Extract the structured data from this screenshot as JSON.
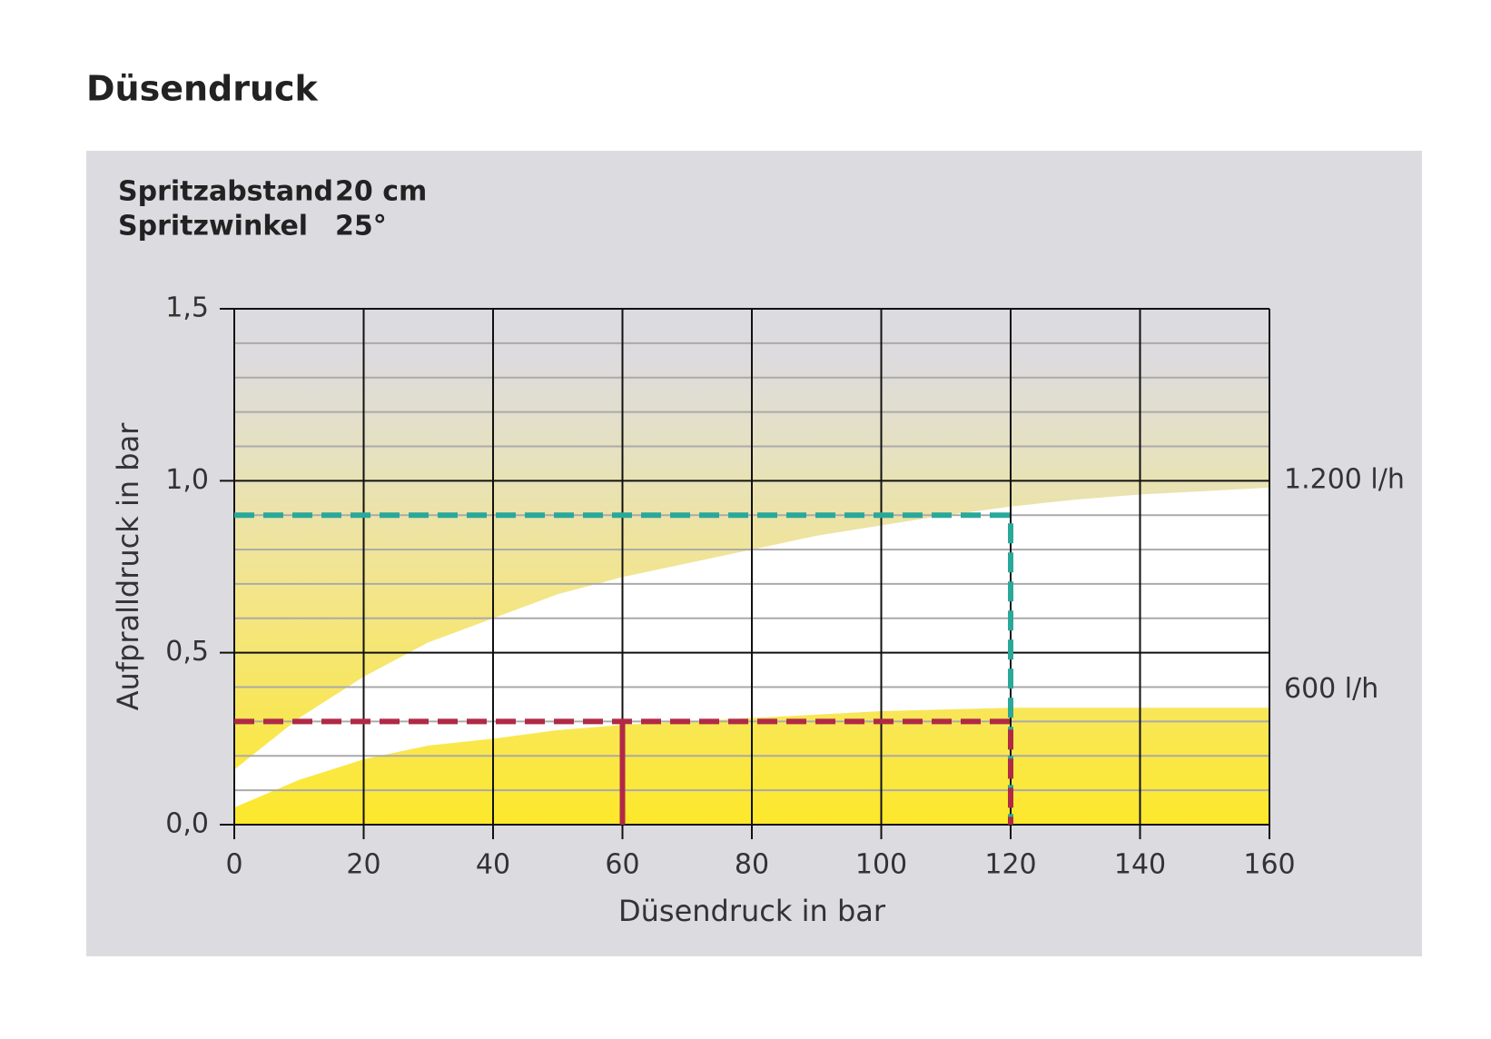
{
  "title": "Düsendruck",
  "chart_data": {
    "type": "area",
    "annotations": [
      {
        "label": "Spritzabstand",
        "value": "20 cm"
      },
      {
        "label": "Spritzwinkel",
        "value": "25°"
      }
    ],
    "x_label": "Düsendruck in bar",
    "y_label": "Aufpralldruck in bar",
    "x": [
      0,
      10,
      20,
      30,
      40,
      50,
      60,
      70,
      80,
      90,
      100,
      110,
      120,
      130,
      140,
      150,
      160
    ],
    "series": [
      {
        "name": "1.200 l/h",
        "color": "#ffffff",
        "values": [
          0.16,
          0.31,
          0.43,
          0.53,
          0.6,
          0.67,
          0.72,
          0.76,
          0.8,
          0.84,
          0.87,
          0.9,
          0.925,
          0.945,
          0.96,
          0.97,
          0.98
        ]
      },
      {
        "name": "600 l/h",
        "color": "#fde82a",
        "values": [
          0.05,
          0.13,
          0.19,
          0.23,
          0.25,
          0.275,
          0.29,
          0.3,
          0.31,
          0.32,
          0.33,
          0.335,
          0.34,
          0.34,
          0.34,
          0.34,
          0.34
        ]
      }
    ],
    "reference_lines": [
      {
        "color": "#2aa89a",
        "dashed": true,
        "x": [
          0,
          120,
          120
        ],
        "y": [
          0.9,
          0.9,
          0
        ]
      },
      {
        "color": "#b02a45",
        "dashed": true,
        "x": [
          0,
          120,
          120
        ],
        "y": [
          0.3,
          0.3,
          0
        ]
      },
      {
        "color": "#b02a45",
        "dashed": false,
        "x": [
          60,
          60
        ],
        "y": [
          0.3,
          0
        ]
      }
    ],
    "xlim": [
      0,
      160
    ],
    "xticks": [
      0,
      20,
      40,
      60,
      80,
      100,
      120,
      140,
      160
    ],
    "ylim": [
      0,
      1.5
    ],
    "yticks": [
      {
        "value": 0,
        "label": "0,0"
      },
      {
        "value": 0.5,
        "label": "0,5"
      },
      {
        "value": 1,
        "label": "1,0"
      },
      {
        "value": 1.5,
        "label": "1,5"
      }
    ],
    "y_minor_ticks": [
      0.1,
      0.2,
      0.3,
      0.4,
      0.6,
      0.7,
      0.8,
      0.9,
      1.1,
      1.2,
      1.3,
      1.4
    ],
    "grid": true
  }
}
